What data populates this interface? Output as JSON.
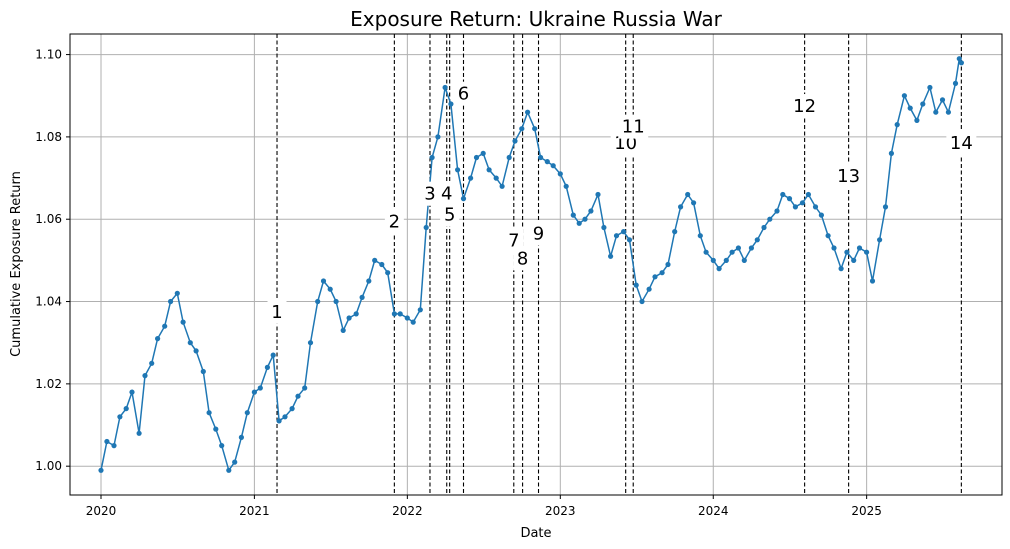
{
  "chart_data": {
    "type": "line",
    "title": "Exposure Return: Ukraine Russia War",
    "xlabel": "Date",
    "ylabel": "Cumulative Exposure Return",
    "xlim": [
      "2019-10-19",
      "2025-11-20"
    ],
    "ylim": [
      0.993,
      1.105
    ],
    "x_ticks": [
      "2020",
      "2021",
      "2022",
      "2023",
      "2024",
      "2025"
    ],
    "y_ticks": [
      "1.00",
      "1.02",
      "1.04",
      "1.06",
      "1.08",
      "1.10"
    ],
    "grid": true,
    "line_color": "#1f77b4",
    "marker": "circle",
    "series": [
      {
        "x": [
          "2020-01-01",
          "2020-01-15",
          "2020-02-01",
          "2020-02-15",
          "2020-03-01",
          "2020-03-15",
          "2020-04-01",
          "2020-04-15",
          "2020-05-01",
          "2020-05-15",
          "2020-06-01",
          "2020-06-15",
          "2020-07-01",
          "2020-07-15",
          "2020-08-01",
          "2020-08-15",
          "2020-09-01",
          "2020-09-15",
          "2020-10-01",
          "2020-10-15",
          "2020-11-01",
          "2020-11-15",
          "2020-12-01",
          "2020-12-15",
          "2021-01-01",
          "2021-01-15",
          "2021-02-01",
          "2021-02-15",
          "2021-03-01",
          "2021-03-15",
          "2021-04-01",
          "2021-04-15",
          "2021-05-01",
          "2021-05-15",
          "2021-06-01",
          "2021-06-15",
          "2021-07-01",
          "2021-07-15",
          "2021-08-01",
          "2021-08-15",
          "2021-09-01",
          "2021-09-15",
          "2021-10-01",
          "2021-10-15",
          "2021-11-01",
          "2021-11-15",
          "2021-12-01",
          "2021-12-15",
          "2022-01-01",
          "2022-01-15",
          "2022-02-01",
          "2022-02-15",
          "2022-03-01",
          "2022-03-15",
          "2022-04-01",
          "2022-04-15",
          "2022-05-01",
          "2022-05-15",
          "2022-06-01",
          "2022-06-15",
          "2022-07-01",
          "2022-07-15",
          "2022-08-01",
          "2022-08-15",
          "2022-09-01",
          "2022-09-15",
          "2022-10-01",
          "2022-10-15",
          "2022-11-01",
          "2022-11-15",
          "2022-12-01",
          "2022-12-15",
          "2023-01-01",
          "2023-01-15",
          "2023-02-01",
          "2023-02-15",
          "2023-03-01",
          "2023-03-15",
          "2023-04-01",
          "2023-04-15",
          "2023-05-01",
          "2023-05-15",
          "2023-06-01",
          "2023-06-15",
          "2023-07-01",
          "2023-07-15",
          "2023-08-01",
          "2023-08-15",
          "2023-09-01",
          "2023-09-15",
          "2023-10-01",
          "2023-10-15",
          "2023-11-01",
          "2023-11-15",
          "2023-12-01",
          "2023-12-15",
          "2024-01-01",
          "2024-01-15",
          "2024-02-01",
          "2024-02-15",
          "2024-03-01",
          "2024-03-15",
          "2024-04-01",
          "2024-04-15",
          "2024-05-01",
          "2024-05-15",
          "2024-06-01",
          "2024-06-15",
          "2024-07-01",
          "2024-07-15",
          "2024-08-01",
          "2024-08-15",
          "2024-09-01",
          "2024-09-15",
          "2024-10-01",
          "2024-10-15",
          "2024-11-01",
          "2024-11-15",
          "2024-12-01",
          "2024-12-15",
          "2025-01-01",
          "2025-01-15",
          "2025-02-01",
          "2025-02-15",
          "2025-03-01",
          "2025-03-15",
          "2025-04-01",
          "2025-04-15",
          "2025-05-01",
          "2025-05-15",
          "2025-06-01",
          "2025-06-15",
          "2025-07-01",
          "2025-07-15",
          "2025-08-01",
          "2025-08-10",
          "2025-08-15"
        ],
        "y": [
          0.999,
          1.006,
          1.005,
          1.012,
          1.014,
          1.018,
          1.008,
          1.022,
          1.025,
          1.031,
          1.034,
          1.04,
          1.042,
          1.035,
          1.03,
          1.028,
          1.023,
          1.013,
          1.009,
          1.005,
          0.999,
          1.001,
          1.007,
          1.013,
          1.018,
          1.019,
          1.024,
          1.027,
          1.011,
          1.012,
          1.014,
          1.017,
          1.019,
          1.03,
          1.04,
          1.045,
          1.043,
          1.04,
          1.033,
          1.036,
          1.037,
          1.041,
          1.045,
          1.05,
          1.049,
          1.047,
          1.037,
          1.037,
          1.036,
          1.035,
          1.038,
          1.058,
          1.075,
          1.08,
          1.092,
          1.088,
          1.072,
          1.065,
          1.07,
          1.075,
          1.076,
          1.072,
          1.07,
          1.068,
          1.075,
          1.079,
          1.082,
          1.086,
          1.082,
          1.075,
          1.074,
          1.073,
          1.071,
          1.068,
          1.061,
          1.059,
          1.06,
          1.062,
          1.066,
          1.058,
          1.051,
          1.056,
          1.057,
          1.055,
          1.044,
          1.04,
          1.043,
          1.046,
          1.047,
          1.049,
          1.057,
          1.063,
          1.066,
          1.064,
          1.056,
          1.052,
          1.05,
          1.048,
          1.05,
          1.052,
          1.053,
          1.05,
          1.053,
          1.055,
          1.058,
          1.06,
          1.062,
          1.066,
          1.065,
          1.063,
          1.064,
          1.066,
          1.063,
          1.061,
          1.056,
          1.053,
          1.048,
          1.052,
          1.05,
          1.053,
          1.052,
          1.045,
          1.055,
          1.063,
          1.076,
          1.083,
          1.09,
          1.087,
          1.084,
          1.088,
          1.092,
          1.086,
          1.089,
          1.086,
          1.093,
          1.099,
          1.098
        ]
      }
    ],
    "events": [
      {
        "label": "1",
        "date": "2021-02-24",
        "label_y": 1.0375
      },
      {
        "label": "2",
        "date": "2021-12-01",
        "label_y": 1.0595
      },
      {
        "label": "3",
        "date": "2022-02-24",
        "label_y": 1.0662
      },
      {
        "label": "4",
        "date": "2022-04-05",
        "label_y": 1.0662
      },
      {
        "label": "5",
        "date": "2022-04-12",
        "label_y": 1.0612
      },
      {
        "label": "6",
        "date": "2022-05-15",
        "label_y": 1.0905
      },
      {
        "label": "7",
        "date": "2022-09-12",
        "label_y": 1.0548
      },
      {
        "label": "8",
        "date": "2022-10-03",
        "label_y": 1.0505
      },
      {
        "label": "9",
        "date": "2022-11-10",
        "label_y": 1.0565
      },
      {
        "label": "10",
        "date": "2023-06-06",
        "label_y": 1.0785
      },
      {
        "label": "11",
        "date": "2023-06-24",
        "label_y": 1.0825
      },
      {
        "label": "12",
        "date": "2024-08-06",
        "label_y": 1.0875
      },
      {
        "label": "13",
        "date": "2024-11-19",
        "label_y": 1.0705
      },
      {
        "label": "14",
        "date": "2025-08-15",
        "label_y": 1.0785
      }
    ]
  }
}
